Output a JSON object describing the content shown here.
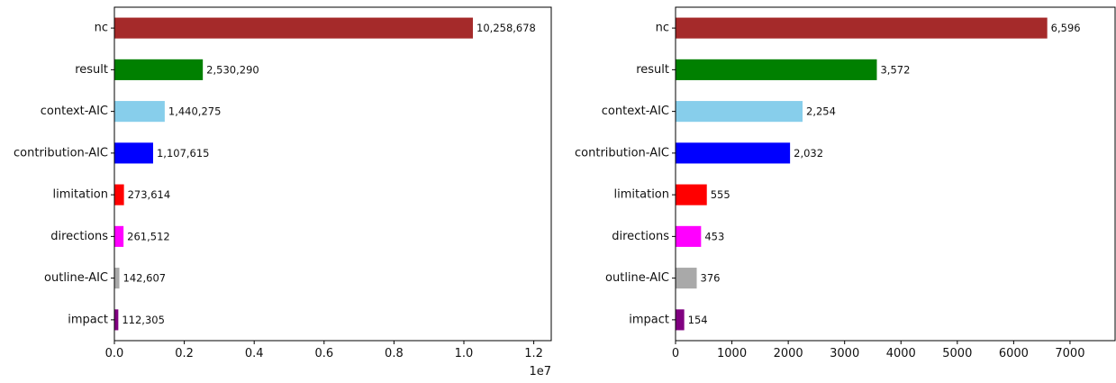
{
  "chart_data": [
    {
      "type": "bar",
      "orientation": "horizontal",
      "categories": [
        "nc",
        "result",
        "context-AIC",
        "contribution-AIC",
        "limitation",
        "directions",
        "outline-AIC",
        "impact"
      ],
      "values": [
        10258678,
        2530290,
        1440275,
        1107615,
        273614,
        261512,
        142607,
        112305
      ],
      "value_labels": [
        "10,258,678",
        "2,530,290",
        "1,440,275",
        "1,107,615",
        "273,614",
        "261,512",
        "142,607",
        "112,305"
      ],
      "colors": [
        "#a52a2a",
        "#008000",
        "#87ceeb",
        "#0000ff",
        "#ff0000",
        "#ff00ff",
        "#a9a9a9",
        "#800080"
      ],
      "xlim": [
        0,
        12500000
      ],
      "x_ticks": [
        0,
        2000000,
        4000000,
        6000000,
        8000000,
        10000000,
        12000000
      ],
      "x_tick_labels": [
        "0.0",
        "0.2",
        "0.4",
        "0.6",
        "0.8",
        "1.0",
        "1.2"
      ],
      "x_offset_label": "1e7",
      "title": "",
      "xlabel": "",
      "ylabel": "",
      "grid": false
    },
    {
      "type": "bar",
      "orientation": "horizontal",
      "categories": [
        "nc",
        "result",
        "context-AIC",
        "contribution-AIC",
        "limitation",
        "directions",
        "outline-AIC",
        "impact"
      ],
      "values": [
        6596,
        3572,
        2254,
        2032,
        555,
        453,
        376,
        154
      ],
      "value_labels": [
        "6,596",
        "3,572",
        "2,254",
        "2,032",
        "555",
        "453",
        "376",
        "154"
      ],
      "colors": [
        "#a52a2a",
        "#008000",
        "#87ceeb",
        "#0000ff",
        "#ff0000",
        "#ff00ff",
        "#a9a9a9",
        "#800080"
      ],
      "xlim": [
        0,
        7800
      ],
      "x_ticks": [
        0,
        1000,
        2000,
        3000,
        4000,
        5000,
        6000,
        7000
      ],
      "x_tick_labels": [
        "0",
        "1000",
        "2000",
        "3000",
        "4000",
        "5000",
        "6000",
        "7000"
      ],
      "x_offset_label": "",
      "title": "",
      "xlabel": "",
      "ylabel": "",
      "grid": false
    }
  ]
}
